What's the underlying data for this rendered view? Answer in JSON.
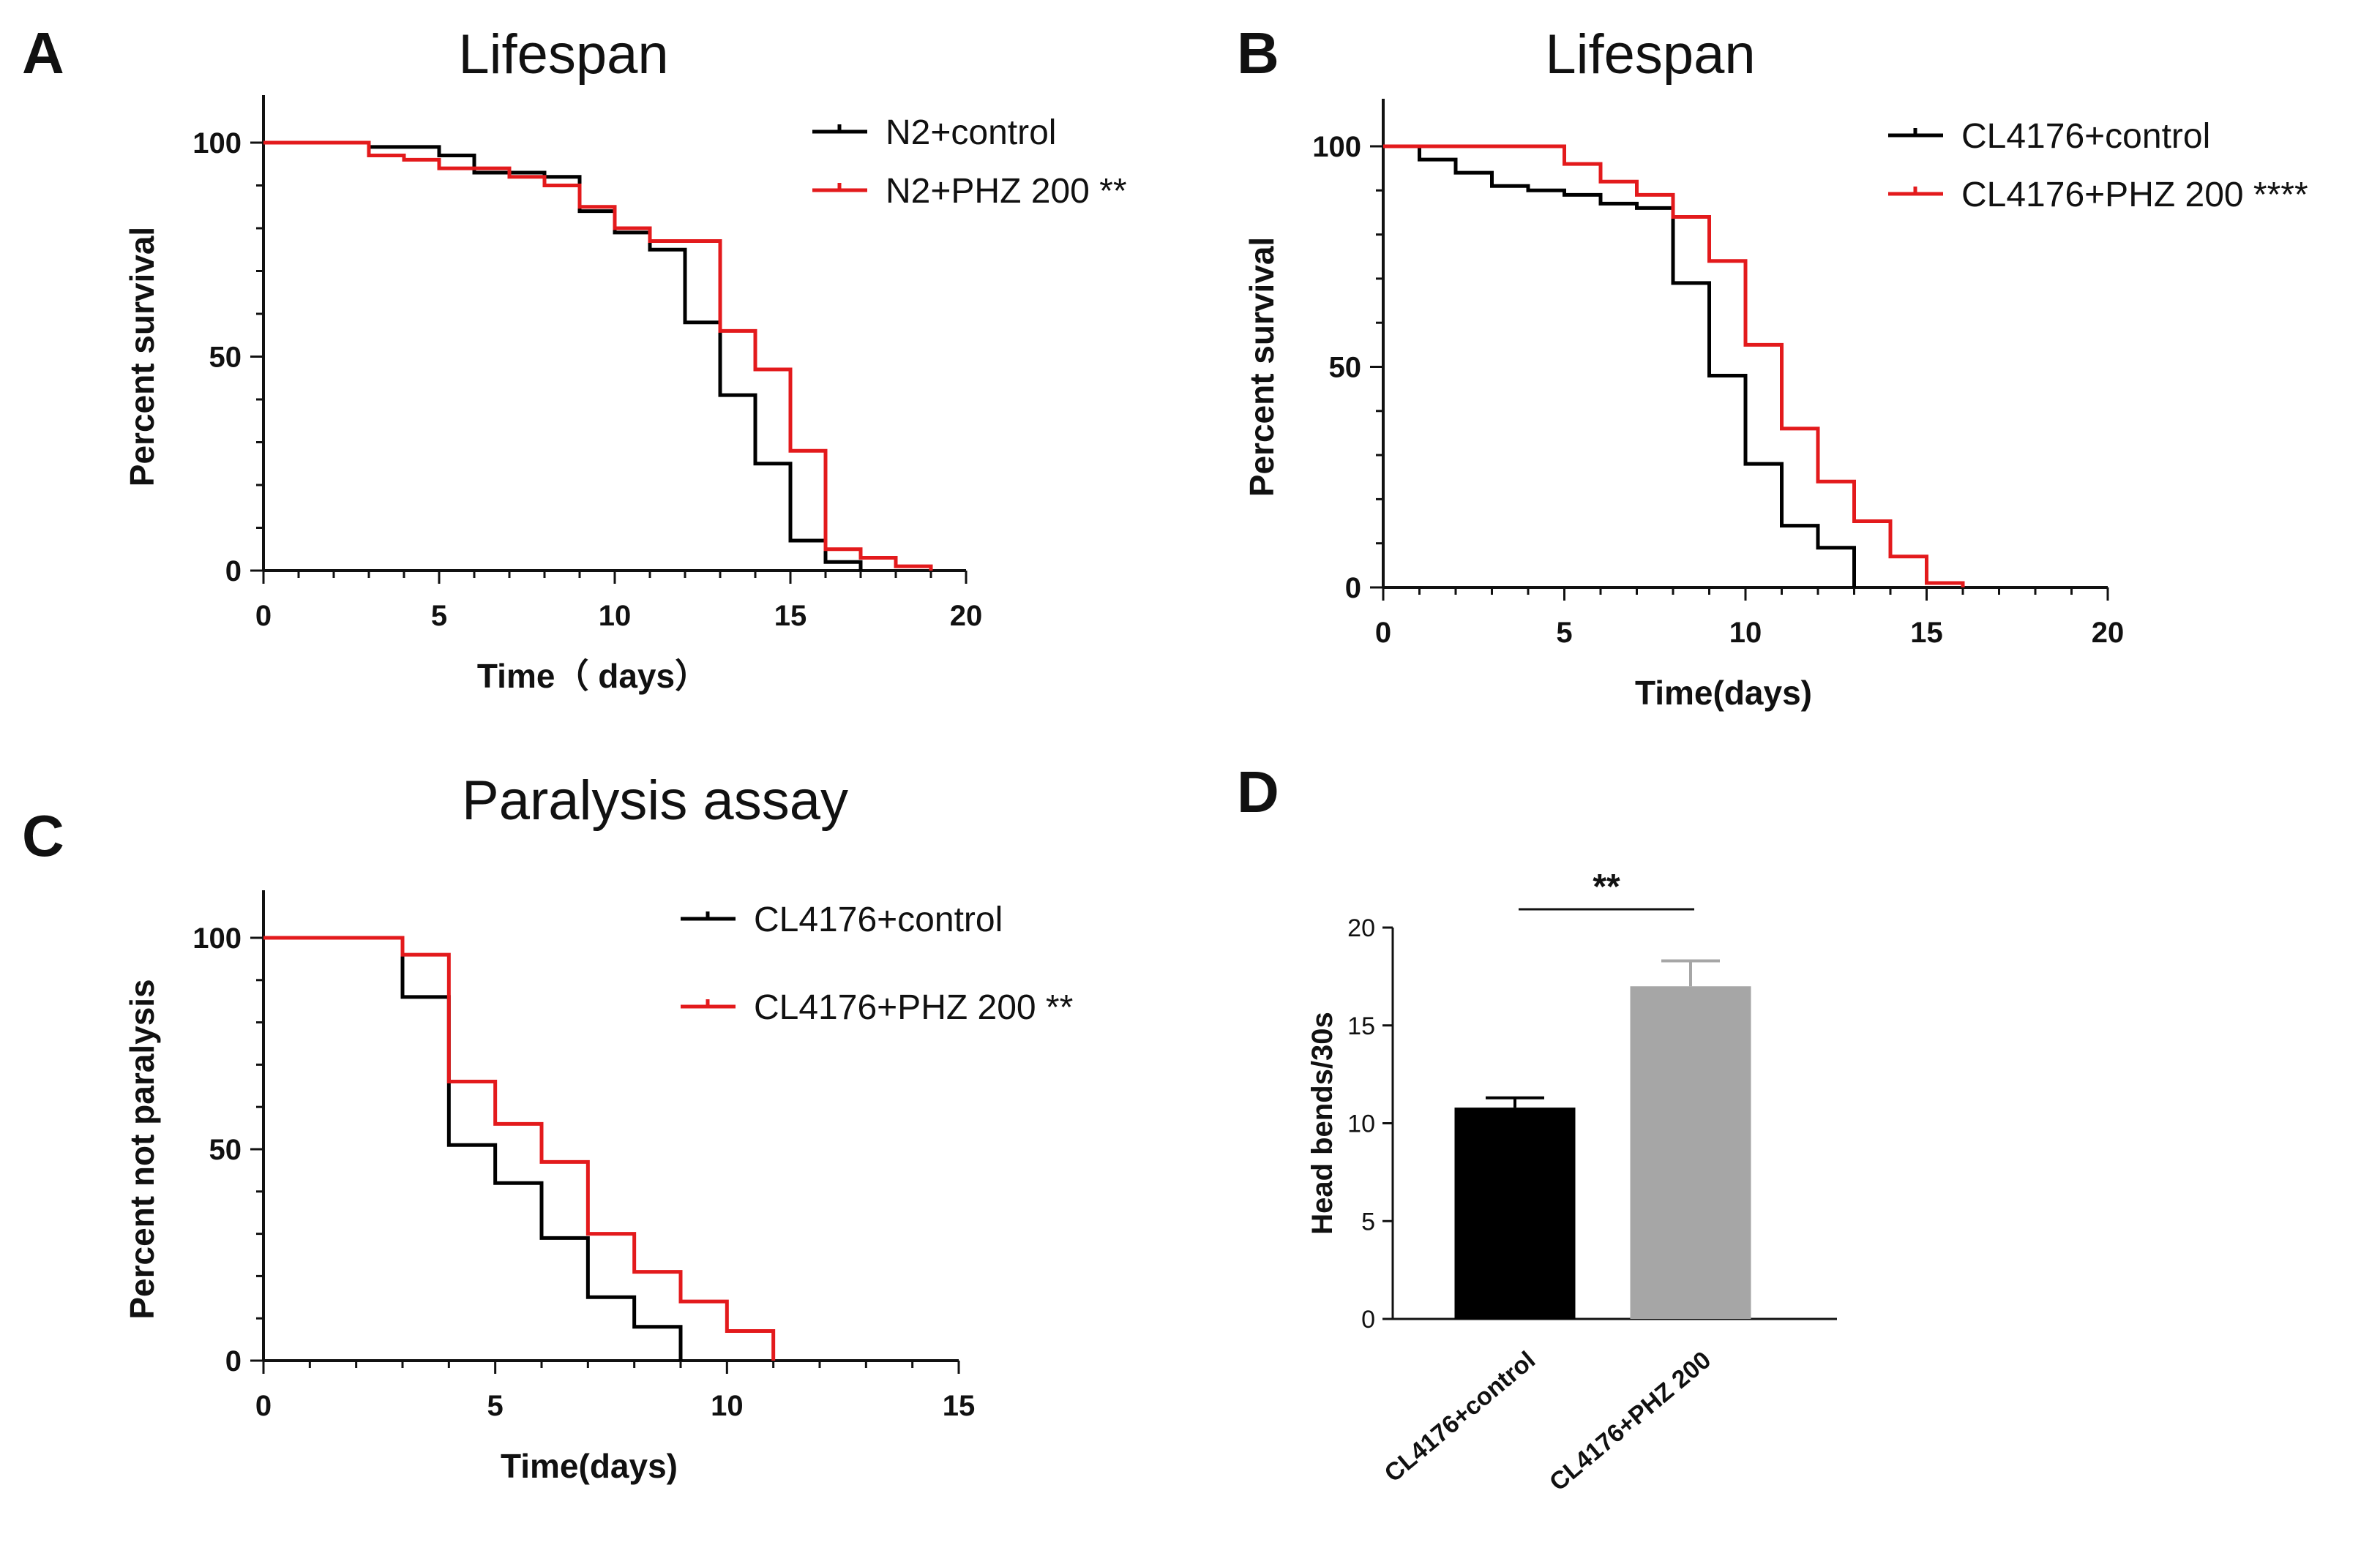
{
  "chart_data": [
    {
      "panel": "A",
      "type": "line",
      "title": "Lifespan",
      "xlabel": "Time（ days）",
      "ylabel": "Percent survival",
      "xlim": [
        0,
        20
      ],
      "ylim": [
        0,
        100
      ],
      "xticks": [
        "0",
        "5",
        "10",
        "15",
        "20"
      ],
      "yticks": [
        "0",
        "50",
        "100"
      ],
      "legend_position": "top-right",
      "series": [
        {
          "name": "N2+control",
          "color": "#000000",
          "x": [
            0,
            3,
            5,
            6,
            8,
            9,
            10,
            11,
            12,
            13,
            14,
            15,
            16,
            17
          ],
          "y": [
            100,
            99,
            97,
            93,
            92,
            84,
            79,
            75,
            58,
            41,
            25,
            7,
            2,
            0
          ]
        },
        {
          "name": "N2+PHZ 200 **",
          "color": "#e31a1c",
          "x": [
            0,
            3,
            4,
            5,
            7,
            8,
            9,
            10,
            11,
            13,
            14,
            15,
            16,
            17,
            18,
            19
          ],
          "y": [
            100,
            97,
            96,
            94,
            92,
            90,
            85,
            80,
            77,
            56,
            47,
            28,
            5,
            3,
            1,
            0
          ]
        }
      ]
    },
    {
      "panel": "B",
      "type": "line",
      "title": "Lifespan",
      "xlabel": "Time(days)",
      "ylabel": "Percent survival",
      "xlim": [
        0,
        20
      ],
      "ylim": [
        0,
        100
      ],
      "xticks": [
        "0",
        "5",
        "10",
        "15",
        "20"
      ],
      "yticks": [
        "0",
        "50",
        "100"
      ],
      "legend_position": "top-right",
      "series": [
        {
          "name": "CL4176+control",
          "color": "#000000",
          "x": [
            0,
            1,
            2,
            3,
            4,
            5,
            6,
            7,
            8,
            9,
            10,
            11,
            12,
            13
          ],
          "y": [
            100,
            97,
            94,
            91,
            90,
            89,
            87,
            86,
            69,
            48,
            28,
            14,
            9,
            0
          ]
        },
        {
          "name": "CL4176+PHZ 200 ****",
          "color": "#e31a1c",
          "x": [
            0,
            5,
            6,
            7,
            8,
            9,
            10,
            11,
            12,
            13,
            14,
            15,
            16
          ],
          "y": [
            100,
            96,
            92,
            89,
            84,
            74,
            55,
            36,
            24,
            15,
            7,
            1,
            0
          ]
        }
      ]
    },
    {
      "panel": "C",
      "type": "line",
      "title": "Paralysis assay",
      "xlabel": "Time(days)",
      "ylabel": "Percent not paralysis",
      "xlim": [
        0,
        15
      ],
      "ylim": [
        0,
        100
      ],
      "xticks": [
        "0",
        "5",
        "10",
        "15"
      ],
      "yticks": [
        "0",
        "50",
        "100"
      ],
      "legend_position": "top-right",
      "series": [
        {
          "name": "CL4176+control",
          "color": "#000000",
          "x": [
            0,
            3,
            4,
            5,
            6,
            7,
            8,
            9
          ],
          "y": [
            100,
            86,
            51,
            42,
            29,
            15,
            8,
            0
          ]
        },
        {
          "name": "CL4176+PHZ 200 **",
          "color": "#e31a1c",
          "x": [
            0,
            3,
            4,
            5,
            6,
            7,
            8,
            9,
            10,
            11
          ],
          "y": [
            100,
            96,
            66,
            56,
            47,
            30,
            21,
            14,
            7,
            0
          ]
        }
      ]
    },
    {
      "panel": "D",
      "type": "bar",
      "title": "",
      "xlabel": "",
      "ylabel": "Head bends/30s",
      "ylim": [
        0,
        20
      ],
      "yticks": [
        "0",
        "5",
        "10",
        "15",
        "20"
      ],
      "categories": [
        "CL4176+control",
        "CL4176+PHZ 200"
      ],
      "values": [
        10.8,
        17.0
      ],
      "errors": [
        0.5,
        1.3
      ],
      "colors": [
        "#000000",
        "#a6a6a6"
      ],
      "significance": "**"
    }
  ]
}
